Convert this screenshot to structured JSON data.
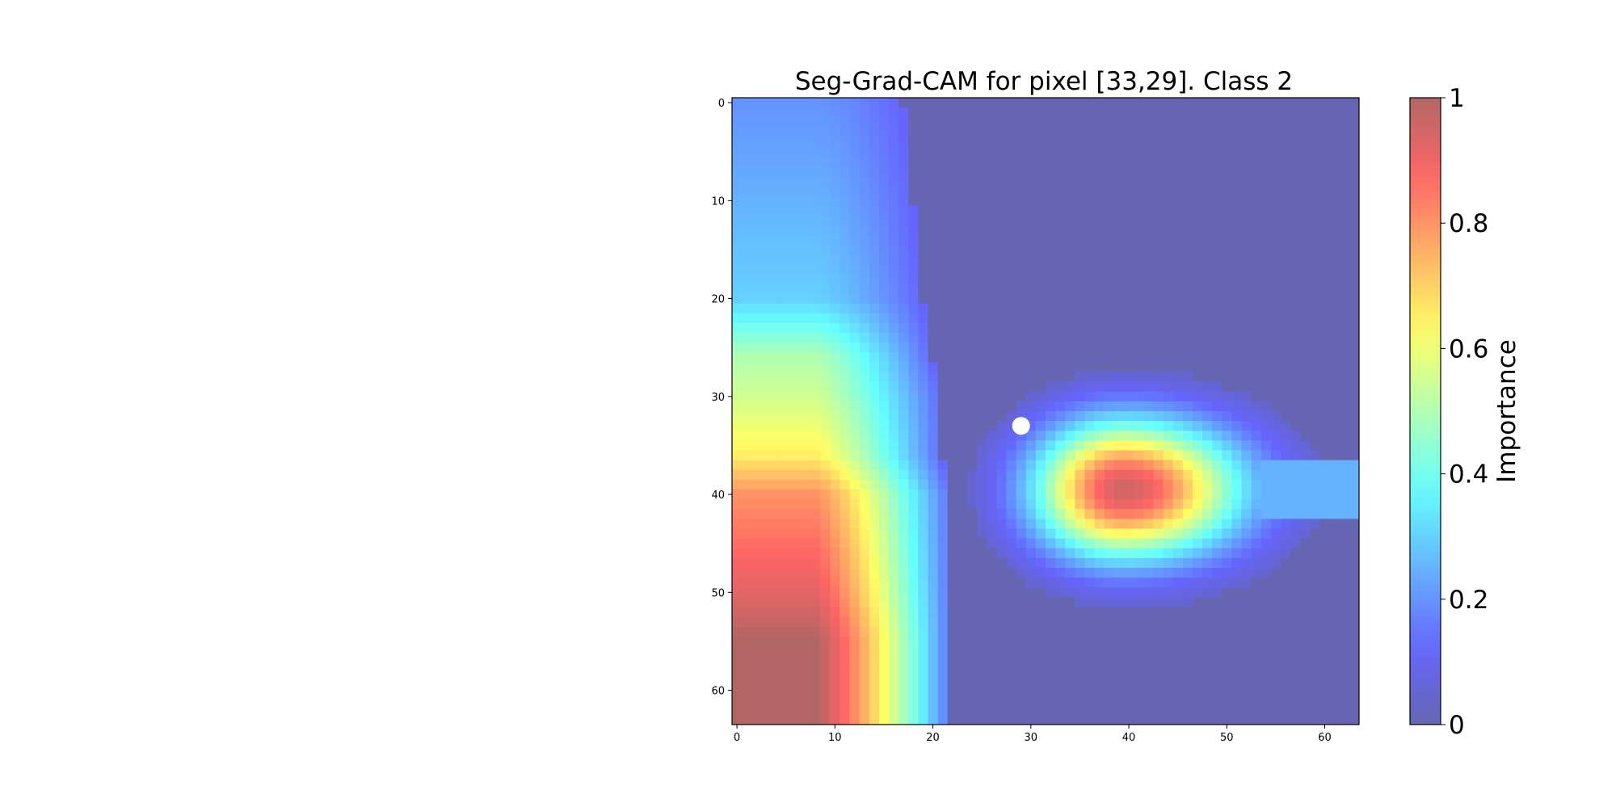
{
  "chart_data": {
    "type": "heatmap",
    "title": "Seg-Grad-CAM for pixel [33,29]. Class 2",
    "xlabel": "",
    "ylabel": "",
    "grid": false,
    "image_shape": [
      64,
      64
    ],
    "xlim": [
      -0.5,
      63.5
    ],
    "ylim": [
      63.5,
      -0.5
    ],
    "x_ticks": [
      0,
      10,
      20,
      30,
      40,
      50,
      60
    ],
    "y_ticks": [
      0,
      10,
      20,
      30,
      40,
      50,
      60
    ],
    "marked_pixel": {
      "row": 33,
      "col": 29,
      "color": "#ffffff"
    },
    "colormap": "jet",
    "overlay_alpha": 0.6,
    "colorbar": {
      "label": "Importance",
      "range": [
        0,
        1
      ],
      "ticks": [
        0,
        0.2,
        0.4,
        0.6,
        0.8,
        1
      ],
      "tick_labels": [
        "0",
        "0.2",
        "0.4",
        "0.6",
        "0.8",
        "1"
      ]
    },
    "importance_model": {
      "description": "approximate importance values read from the heatmap",
      "left_band": [
        {
          "row": 0,
          "col0": 0.2,
          "edge": 17
        },
        {
          "row": 10,
          "col0": 0.25,
          "edge": 18
        },
        {
          "row": 20,
          "col0": 0.3,
          "edge": 19
        },
        {
          "row": 26,
          "col0": 0.5,
          "edge": 20
        },
        {
          "row": 30,
          "col0": 0.55,
          "edge": 21
        },
        {
          "row": 36,
          "col0": 0.65,
          "edge": 21
        },
        {
          "row": 40,
          "col0": 0.8,
          "edge": 22
        },
        {
          "row": 50,
          "col0": 0.92,
          "edge": 22
        },
        {
          "row": 55,
          "col0": 1.0,
          "edge": 22
        },
        {
          "row": 63,
          "col0": 1.0,
          "edge": 22
        }
      ],
      "left_band_flat_until_col": 8,
      "right_blob": {
        "center_row": 39.5,
        "center_col": 39.5,
        "peak": 0.95,
        "sigma_row": 5.0,
        "sigma_col_left": 6.5,
        "sigma_col_right": 8.5
      },
      "right_streak": {
        "row_start": 37,
        "row_end": 42,
        "col_start": 54,
        "value": 0.25
      }
    }
  }
}
